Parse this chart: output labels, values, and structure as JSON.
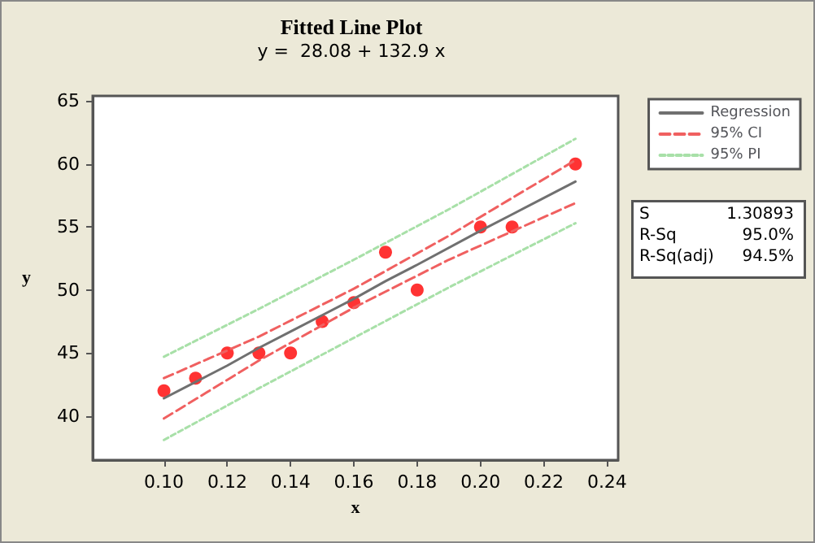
{
  "chart_data": {
    "type": "line",
    "title": "Fitted Line Plot",
    "subtitle": "y =  28.08 + 132.9 x",
    "xlabel": "x",
    "ylabel": "y",
    "xlim": [
      0.0775,
      0.2435
    ],
    "ylim": [
      36.5,
      65.4
    ],
    "xticks": [
      {
        "value": 0.1,
        "label": "0.10"
      },
      {
        "value": 0.12,
        "label": "0.12"
      },
      {
        "value": 0.14,
        "label": "0.14"
      },
      {
        "value": 0.16,
        "label": "0.16"
      },
      {
        "value": 0.18,
        "label": "0.18"
      },
      {
        "value": 0.2,
        "label": "0.20"
      },
      {
        "value": 0.22,
        "label": "0.22"
      },
      {
        "value": 0.24,
        "label": "0.24"
      }
    ],
    "yticks": [
      40,
      45,
      50,
      55,
      60,
      65
    ],
    "grid": false,
    "legend": "right",
    "annotations": [
      "S",
      "1.30893",
      "R-Sq",
      "95.0%",
      "R-Sq(adj)",
      "94.5%"
    ],
    "series": [
      {
        "type": "scatter",
        "color": "#ff0000",
        "marker": "circle",
        "x": [
          0.1,
          0.11,
          0.12,
          0.13,
          0.14,
          0.15,
          0.16,
          0.17,
          0.18,
          0.2,
          0.21,
          0.23
        ],
        "values": [
          42,
          43,
          45,
          45,
          45,
          47.5,
          49,
          53,
          50,
          55,
          55,
          60
        ]
      },
      {
        "name": "Regression",
        "color": "#707070",
        "line_style": "solid",
        "marker": "none",
        "x": [
          0.1,
          0.11,
          0.12,
          0.13,
          0.14,
          0.15,
          0.16,
          0.17,
          0.18,
          0.2,
          0.21,
          0.23
        ],
        "values": [
          41.4,
          42.7,
          44.0,
          45.4,
          46.7,
          48.0,
          49.3,
          50.7,
          52.0,
          54.7,
          56.0,
          58.6
        ]
      },
      {
        "name": "95% CI",
        "color": "#f06060",
        "line_style": "dashed",
        "marker": "none",
        "x": [
          0.1,
          0.13,
          0.16,
          0.19,
          0.23
        ],
        "values": [
          43.0,
          46.3,
          50.1,
          54.3,
          60.3
        ]
      },
      {
        "color": "#f06060",
        "line_style": "dashed",
        "marker": "none",
        "x": [
          0.1,
          0.13,
          0.16,
          0.19,
          0.23
        ],
        "values": [
          39.8,
          44.4,
          48.6,
          52.4,
          56.9
        ]
      },
      {
        "name": "95% PI",
        "color": "#a8e0a8",
        "line_style": "dotted",
        "marker": "none",
        "x": [
          0.1,
          0.13,
          0.16,
          0.19,
          0.23
        ],
        "values": [
          44.7,
          48.5,
          52.4,
          56.4,
          62.0
        ]
      },
      {
        "color": "#a8e0a8",
        "line_style": "dotted",
        "marker": "none",
        "x": [
          0.1,
          0.13,
          0.16,
          0.19,
          0.23
        ],
        "values": [
          38.1,
          42.2,
          46.2,
          50.2,
          55.3
        ]
      }
    ]
  }
}
